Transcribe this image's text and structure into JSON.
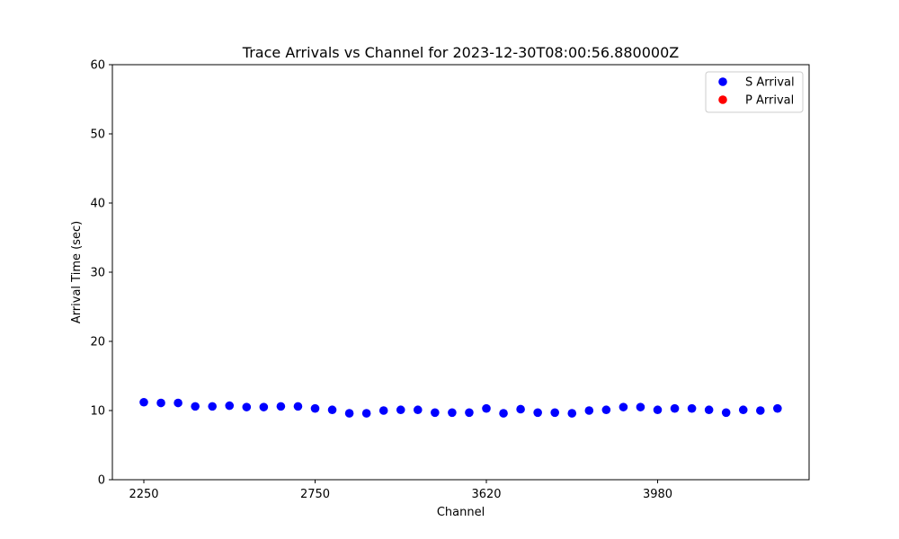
{
  "chart_data": {
    "type": "scatter",
    "title": "Trace Arrivals vs Channel for 2023-12-30T08:00:56.880000Z",
    "xlabel": "Channel",
    "ylabel": "Arrival Time (sec)",
    "ylim": [
      0,
      60
    ],
    "y_ticks": [
      0,
      10,
      20,
      30,
      40,
      50,
      60
    ],
    "x_tick_labels": [
      "2250",
      "2750",
      "3620",
      "3980"
    ],
    "x_tick_index": [
      0,
      10,
      20,
      30
    ],
    "grid": false,
    "legend_position": "top-right",
    "series": [
      {
        "name": "S Arrival",
        "color": "#0000ff",
        "values": [
          11.2,
          11.1,
          11.1,
          10.6,
          10.6,
          10.7,
          10.5,
          10.5,
          10.6,
          10.6,
          10.3,
          10.1,
          9.6,
          9.6,
          10.0,
          10.1,
          10.1,
          9.7,
          9.7,
          9.7,
          10.3,
          9.6,
          10.2,
          9.7,
          9.7,
          9.6,
          10.0,
          10.1,
          10.5,
          10.5,
          10.1,
          10.3,
          10.3,
          10.1,
          9.7,
          10.1,
          10.0,
          10.3
        ]
      },
      {
        "name": "P Arrival",
        "color": "#ff0000",
        "values": []
      }
    ]
  }
}
